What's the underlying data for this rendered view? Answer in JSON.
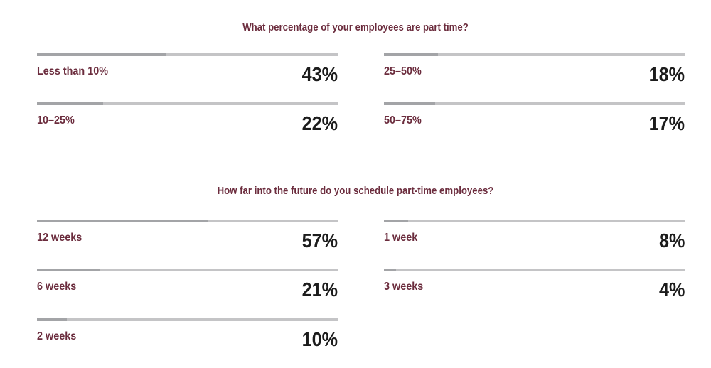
{
  "chart_data": [
    {
      "type": "bar",
      "title": "What percentage of your employees are part time?",
      "categories": [
        "Less than 10%",
        "25–50%",
        "10–25%",
        "50–75%"
      ],
      "values": [
        43,
        18,
        22,
        17
      ],
      "value_labels": [
        "43%",
        "18%",
        "22%",
        "17%"
      ],
      "unit": "%",
      "ylim": [
        0,
        100
      ],
      "layout": "two-column grid"
    },
    {
      "type": "bar",
      "title": "How far into the future do you schedule part-time employees?",
      "categories": [
        "12 weeks",
        "1 week",
        "6 weeks",
        "3 weeks",
        "2 weeks"
      ],
      "values": [
        57,
        8,
        21,
        4,
        10
      ],
      "value_labels": [
        "57%",
        "8%",
        "21%",
        "4%",
        "10%"
      ],
      "unit": "%",
      "ylim": [
        0,
        100
      ],
      "layout": "two-column grid"
    }
  ],
  "colors": {
    "label": "#6b2c3d",
    "value": "#1c1c1c",
    "track": "#c4c4c6",
    "fill": "#a3a4a7"
  }
}
